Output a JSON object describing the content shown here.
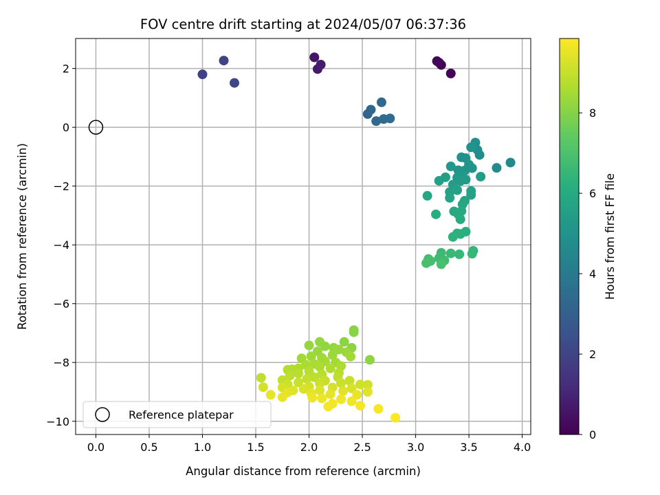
{
  "chart_data": {
    "type": "scatter",
    "title": "FOV centre drift starting at 2024/05/07 06:37:36",
    "xlabel": "Angular distance from reference (arcmin)",
    "ylabel": "Rotation from reference (arcmin)",
    "xlim": [
      -0.19,
      4.08
    ],
    "ylim": [
      -10.45,
      3.02
    ],
    "xticks": [
      0.0,
      0.5,
      1.0,
      1.5,
      2.0,
      2.5,
      3.0,
      3.5,
      4.0
    ],
    "xtick_labels": [
      "0.0",
      "0.5",
      "1.0",
      "1.5",
      "2.0",
      "2.5",
      "3.0",
      "3.5",
      "4.0"
    ],
    "yticks": [
      2,
      0,
      -2,
      -4,
      -6,
      -8,
      -10
    ],
    "ytick_labels": [
      "2",
      "0",
      "−2",
      "−4",
      "−6",
      "−8",
      "−10"
    ],
    "grid": true,
    "colormap": "viridis",
    "colorbar": {
      "label": "Hours from first FF file",
      "range": [
        0,
        9.85
      ],
      "ticks": [
        0,
        2,
        4,
        6,
        8
      ],
      "tick_labels": [
        "0",
        "2",
        "4",
        "6",
        "8"
      ]
    },
    "legend": {
      "placement": "lower-left",
      "entries": [
        {
          "label": "Reference platepar",
          "marker": "open-circle"
        }
      ]
    },
    "reference_point": {
      "x": 0.0,
      "y": 0.0
    },
    "series": [
      {
        "values_are": "[x arcmin, y arcmin, hours]",
        "points": [
          [
            3.33,
            1.83,
            0.05
          ],
          [
            3.24,
            2.12,
            0.1
          ],
          [
            3.22,
            2.2,
            0.15
          ],
          [
            3.2,
            2.25,
            0.2
          ],
          [
            2.05,
            2.38,
            0.6
          ],
          [
            2.08,
            1.98,
            0.7
          ],
          [
            2.11,
            2.13,
            0.75
          ],
          [
            1.0,
            1.8,
            1.9
          ],
          [
            1.2,
            2.27,
            2.0
          ],
          [
            1.3,
            1.51,
            2.1
          ],
          [
            2.55,
            0.45,
            3.2
          ],
          [
            2.58,
            0.6,
            3.25
          ],
          [
            2.63,
            0.21,
            3.3
          ],
          [
            2.68,
            0.85,
            3.35
          ],
          [
            2.7,
            0.28,
            3.4
          ],
          [
            2.76,
            0.3,
            3.45
          ],
          [
            3.89,
            -1.2,
            4.6
          ],
          [
            3.76,
            -1.38,
            4.7
          ],
          [
            3.6,
            -0.94,
            4.8
          ],
          [
            3.58,
            -0.77,
            4.85
          ],
          [
            3.56,
            -0.52,
            4.9
          ],
          [
            3.52,
            -0.68,
            4.95
          ],
          [
            3.47,
            -1.05,
            5.0
          ],
          [
            3.43,
            -1.02,
            5.0
          ],
          [
            3.5,
            -1.27,
            5.05
          ],
          [
            3.53,
            -1.39,
            5.1
          ],
          [
            3.46,
            -1.47,
            5.1
          ],
          [
            3.4,
            -1.46,
            5.15
          ],
          [
            3.33,
            -1.33,
            5.2
          ],
          [
            3.44,
            -1.65,
            5.25
          ],
          [
            3.39,
            -1.71,
            5.3
          ],
          [
            3.47,
            -1.78,
            5.35
          ],
          [
            3.42,
            -1.83,
            5.35
          ],
          [
            3.35,
            -1.95,
            5.4
          ],
          [
            3.61,
            -1.68,
            5.45
          ],
          [
            3.28,
            -1.7,
            5.5
          ],
          [
            3.22,
            -1.82,
            5.5
          ],
          [
            3.32,
            -2.2,
            5.55
          ],
          [
            3.39,
            -2.14,
            5.6
          ],
          [
            3.52,
            -2.17,
            5.6
          ],
          [
            3.52,
            -2.3,
            5.65
          ],
          [
            3.32,
            -2.4,
            5.7
          ],
          [
            3.46,
            -2.5,
            5.75
          ],
          [
            3.44,
            -2.62,
            5.8
          ],
          [
            3.11,
            -2.33,
            5.85
          ],
          [
            3.36,
            -2.86,
            5.9
          ],
          [
            3.43,
            -2.85,
            5.95
          ],
          [
            3.4,
            -2.96,
            6.0
          ],
          [
            3.42,
            -3.13,
            6.05
          ],
          [
            3.19,
            -2.96,
            6.1
          ],
          [
            3.47,
            -3.55,
            6.15
          ],
          [
            3.42,
            -3.63,
            6.2
          ],
          [
            3.39,
            -3.61,
            6.25
          ],
          [
            3.35,
            -3.73,
            6.3
          ],
          [
            3.54,
            -4.2,
            6.45
          ],
          [
            3.53,
            -4.3,
            6.5
          ],
          [
            3.41,
            -4.32,
            6.55
          ],
          [
            3.33,
            -4.29,
            6.6
          ],
          [
            3.24,
            -4.27,
            6.65
          ],
          [
            3.22,
            -4.45,
            6.7
          ],
          [
            3.27,
            -4.53,
            6.75
          ],
          [
            3.12,
            -4.48,
            6.8
          ],
          [
            3.14,
            -4.55,
            6.85
          ],
          [
            3.1,
            -4.62,
            6.9
          ],
          [
            3.24,
            -4.66,
            6.95
          ],
          [
            2.42,
            -6.9,
            8.0
          ],
          [
            2.42,
            -6.97,
            8.05
          ],
          [
            2.4,
            -7.5,
            8.1
          ],
          [
            2.33,
            -7.3,
            8.1
          ],
          [
            2.57,
            -7.91,
            8.15
          ],
          [
            2.1,
            -7.3,
            8.2
          ],
          [
            2.15,
            -7.45,
            8.2
          ],
          [
            2.0,
            -7.42,
            8.25
          ],
          [
            2.23,
            -7.5,
            8.25
          ],
          [
            2.28,
            -7.56,
            8.3
          ],
          [
            2.08,
            -7.62,
            8.3
          ],
          [
            2.35,
            -7.65,
            8.35
          ],
          [
            2.22,
            -7.75,
            8.35
          ],
          [
            2.02,
            -7.79,
            8.4
          ],
          [
            2.12,
            -7.84,
            8.4
          ],
          [
            1.93,
            -7.86,
            8.45
          ],
          [
            2.39,
            -7.8,
            8.45
          ],
          [
            2.15,
            -7.96,
            8.5
          ],
          [
            2.25,
            -8.0,
            8.5
          ],
          [
            2.05,
            -8.05,
            8.55
          ],
          [
            1.97,
            -8.08,
            8.55
          ],
          [
            2.3,
            -8.12,
            8.6
          ],
          [
            2.1,
            -8.15,
            8.6
          ],
          [
            1.9,
            -8.2,
            8.65
          ],
          [
            2.2,
            -8.2,
            8.65
          ],
          [
            1.84,
            -8.23,
            8.7
          ],
          [
            1.8,
            -8.25,
            8.7
          ],
          [
            2.0,
            -8.3,
            8.75
          ],
          [
            2.28,
            -8.35,
            8.75
          ],
          [
            1.9,
            -8.38,
            8.8
          ],
          [
            2.12,
            -8.4,
            8.8
          ],
          [
            1.82,
            -8.45,
            8.85
          ],
          [
            2.05,
            -8.5,
            8.85
          ],
          [
            2.27,
            -8.5,
            8.9
          ],
          [
            1.55,
            -8.52,
            8.9
          ],
          [
            1.98,
            -8.56,
            8.95
          ],
          [
            1.75,
            -8.6,
            8.95
          ],
          [
            2.15,
            -8.62,
            9.0
          ],
          [
            2.38,
            -8.62,
            9.0
          ],
          [
            1.9,
            -8.68,
            9.05
          ],
          [
            2.3,
            -8.7,
            9.05
          ],
          [
            2.1,
            -8.72,
            9.1
          ],
          [
            1.8,
            -8.75,
            9.1
          ],
          [
            2.48,
            -8.75,
            9.15
          ],
          [
            2.55,
            -8.76,
            9.15
          ],
          [
            1.57,
            -8.84,
            9.2
          ],
          [
            2.0,
            -8.82,
            9.2
          ],
          [
            1.75,
            -8.85,
            9.25
          ],
          [
            2.22,
            -8.85,
            9.25
          ],
          [
            2.4,
            -8.88,
            9.3
          ],
          [
            1.95,
            -8.9,
            9.3
          ],
          [
            1.85,
            -8.95,
            9.35
          ],
          [
            2.1,
            -8.95,
            9.35
          ],
          [
            2.32,
            -8.97,
            9.4
          ],
          [
            2.55,
            -9.0,
            9.4
          ],
          [
            1.8,
            -9.02,
            9.45
          ],
          [
            2.02,
            -9.05,
            9.45
          ],
          [
            2.2,
            -9.08,
            9.5
          ],
          [
            1.64,
            -9.1,
            9.5
          ],
          [
            2.45,
            -9.1,
            9.55
          ],
          [
            1.75,
            -9.18,
            9.55
          ],
          [
            2.03,
            -9.2,
            9.6
          ],
          [
            2.12,
            -9.22,
            9.6
          ],
          [
            2.3,
            -9.25,
            9.65
          ],
          [
            2.4,
            -9.32,
            9.65
          ],
          [
            2.22,
            -9.4,
            9.7
          ],
          [
            2.18,
            -9.5,
            9.7
          ],
          [
            2.48,
            -9.47,
            9.75
          ],
          [
            2.65,
            -9.58,
            9.75
          ],
          [
            2.81,
            -9.88,
            9.8
          ]
        ]
      }
    ]
  }
}
